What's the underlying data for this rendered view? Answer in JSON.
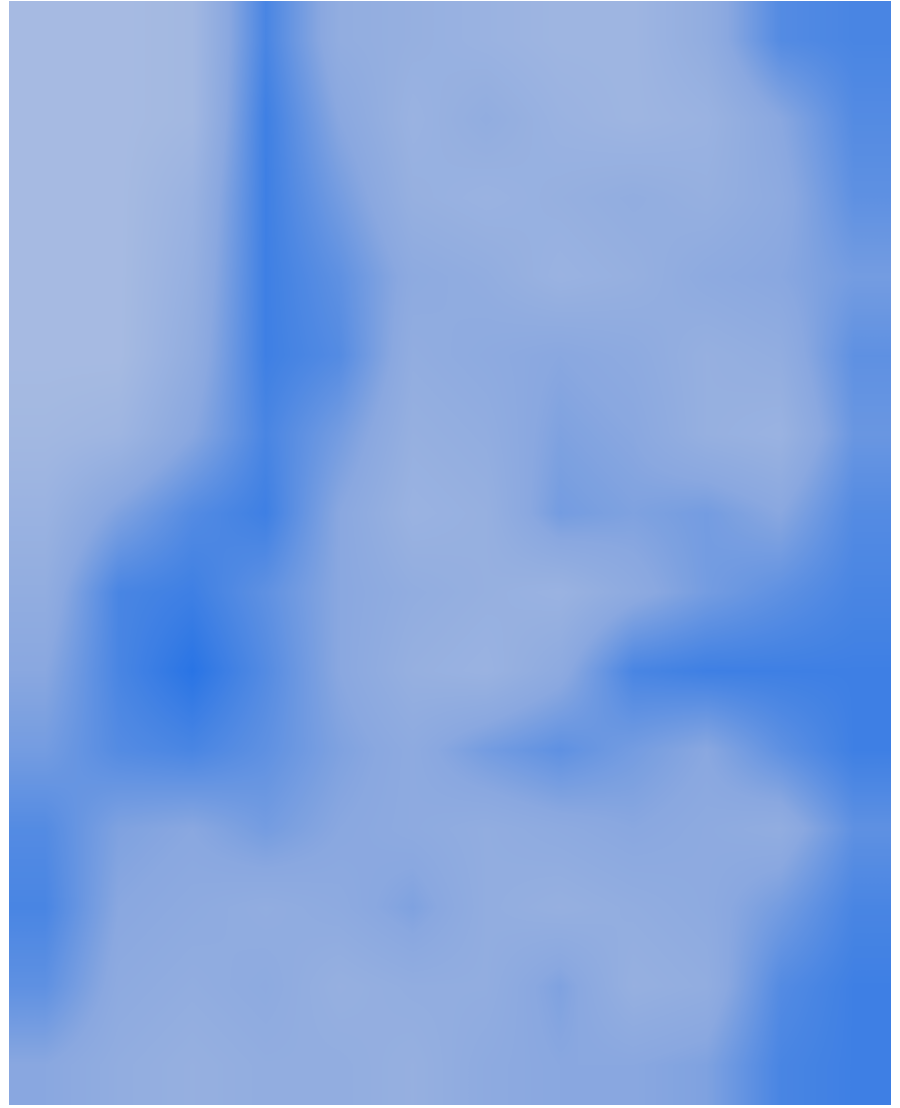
{
  "chart_data": {
    "type": "heatmap",
    "tick_labels": false,
    "color_range": [
      0,
      1
    ],
    "cells": [
      [
        0.15,
        0.15,
        0.2,
        0.8,
        0.4,
        0.35,
        0.3,
        0.25,
        0.25,
        0.4,
        0.75,
        0.8
      ],
      [
        0.15,
        0.15,
        0.2,
        0.85,
        0.5,
        0.3,
        0.4,
        0.3,
        0.25,
        0.3,
        0.5,
        0.75
      ],
      [
        0.15,
        0.15,
        0.3,
        0.85,
        0.6,
        0.35,
        0.3,
        0.35,
        0.4,
        0.35,
        0.45,
        0.7
      ],
      [
        0.15,
        0.15,
        0.35,
        0.85,
        0.7,
        0.45,
        0.4,
        0.3,
        0.35,
        0.45,
        0.5,
        0.6
      ],
      [
        0.15,
        0.15,
        0.4,
        0.85,
        0.75,
        0.4,
        0.45,
        0.5,
        0.45,
        0.35,
        0.4,
        0.7
      ],
      [
        0.2,
        0.25,
        0.5,
        0.8,
        0.6,
        0.35,
        0.4,
        0.55,
        0.5,
        0.35,
        0.3,
        0.65
      ],
      [
        0.3,
        0.55,
        0.75,
        0.85,
        0.5,
        0.3,
        0.35,
        0.6,
        0.55,
        0.6,
        0.5,
        0.75
      ],
      [
        0.4,
        0.8,
        0.85,
        0.7,
        0.5,
        0.4,
        0.35,
        0.3,
        0.45,
        0.6,
        0.7,
        0.8
      ],
      [
        0.5,
        0.8,
        0.95,
        0.75,
        0.5,
        0.35,
        0.3,
        0.45,
        0.8,
        0.85,
        0.85,
        0.85
      ],
      [
        0.6,
        0.75,
        0.8,
        0.7,
        0.55,
        0.45,
        0.6,
        0.7,
        0.6,
        0.5,
        0.7,
        0.85
      ],
      [
        0.75,
        0.55,
        0.5,
        0.6,
        0.5,
        0.45,
        0.4,
        0.45,
        0.5,
        0.45,
        0.4,
        0.7
      ],
      [
        0.8,
        0.5,
        0.45,
        0.4,
        0.45,
        0.55,
        0.4,
        0.35,
        0.4,
        0.45,
        0.6,
        0.8
      ],
      [
        0.7,
        0.45,
        0.4,
        0.45,
        0.35,
        0.4,
        0.4,
        0.55,
        0.35,
        0.4,
        0.75,
        0.85
      ],
      [
        0.5,
        0.4,
        0.35,
        0.4,
        0.4,
        0.35,
        0.45,
        0.5,
        0.5,
        0.55,
        0.8,
        0.85
      ]
    ]
  }
}
